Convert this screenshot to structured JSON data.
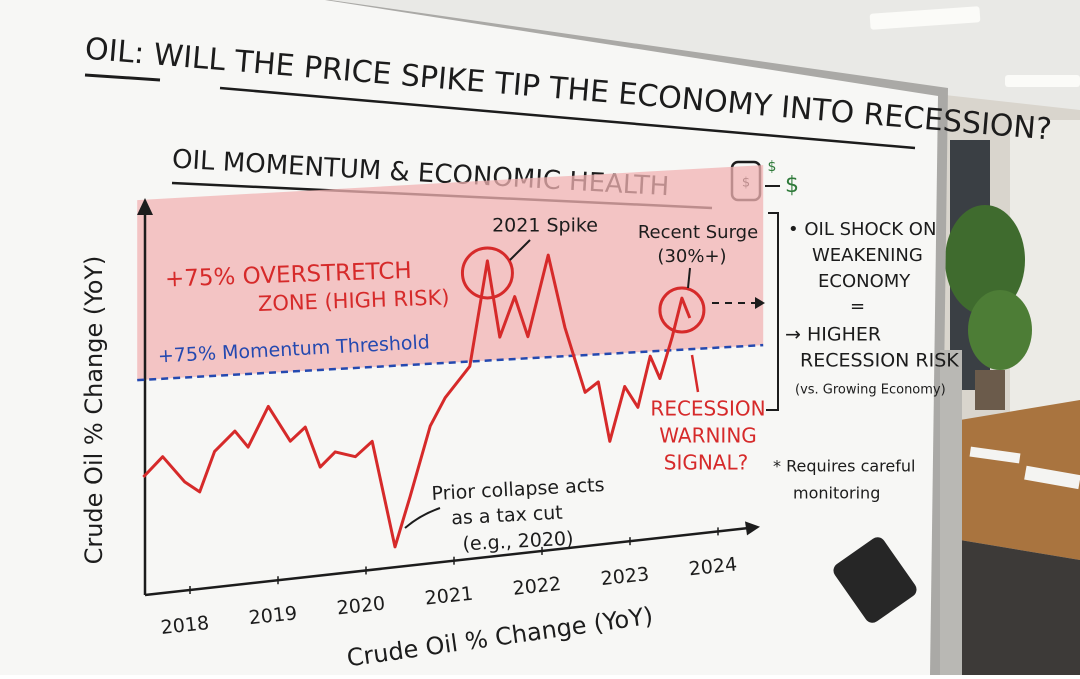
{
  "header": {
    "title": "OIL: WILL THE PRICE SPIKE TIP THE ECONOMY INTO RECESSION?"
  },
  "icon_symbol": "$",
  "chart_data": {
    "type": "line",
    "title": "OIL MOMENTUM & ECONOMIC HEALTH",
    "y_label": "Crude Oil % Change (YoY)",
    "x_label": "Crude Oil % Change (YoY)",
    "x": [
      2017.47,
      2017.69,
      2017.94,
      2018.11,
      2018.28,
      2018.51,
      2018.66,
      2018.89,
      2019.14,
      2019.31,
      2019.48,
      2019.65,
      2019.88,
      2020.07,
      2020.33,
      2020.5,
      2020.73,
      2020.9,
      2021.18,
      2021.38,
      2021.52,
      2021.69,
      2021.84,
      2022.07,
      2022.26,
      2022.49,
      2022.64,
      2022.77,
      2022.94,
      2023.09,
      2023.23,
      2023.34,
      2023.48,
      2023.59,
      2023.68
    ],
    "values": [
      -6,
      10,
      -12,
      -21,
      12,
      28,
      14,
      47,
      17,
      28,
      -6,
      6,
      1,
      13,
      -76,
      -35,
      23,
      46,
      71,
      158,
      94,
      127,
      93,
      160,
      99,
      44,
      52,
      2,
      47,
      29,
      71,
      52,
      86,
      118,
      101
    ],
    "color": "#d62a2a",
    "xlim": [
      2017.4,
      2024.4
    ],
    "xticks": [
      2018,
      2019,
      2020,
      2021,
      2022,
      2023,
      2024
    ],
    "ylim": [
      -100,
      225
    ],
    "threshold": {
      "value": 75,
      "label": "+75% Momentum Threshold",
      "color": "#2449b0"
    },
    "zone_label": [
      "+75% OVERSTRETCH",
      "ZONE (HIGH RISK)"
    ],
    "annotations": {
      "spike": "2021 Spike",
      "surge": [
        "Recent Surge",
        "(30%+)"
      ],
      "collapse": [
        "Prior collapse acts",
        "as a tax cut",
        "(e.g., 2020)"
      ],
      "warning": [
        "RECESSION",
        "WARNING",
        "SIGNAL?"
      ]
    },
    "side_note": [
      "• OIL SHOCK ON",
      "WEAKENING",
      "ECONOMY",
      "=",
      "→ HIGHER",
      "RECESSION RISK",
      "(vs. Growing Economy)"
    ],
    "footnote": [
      "* Requires careful",
      "monitoring"
    ]
  }
}
